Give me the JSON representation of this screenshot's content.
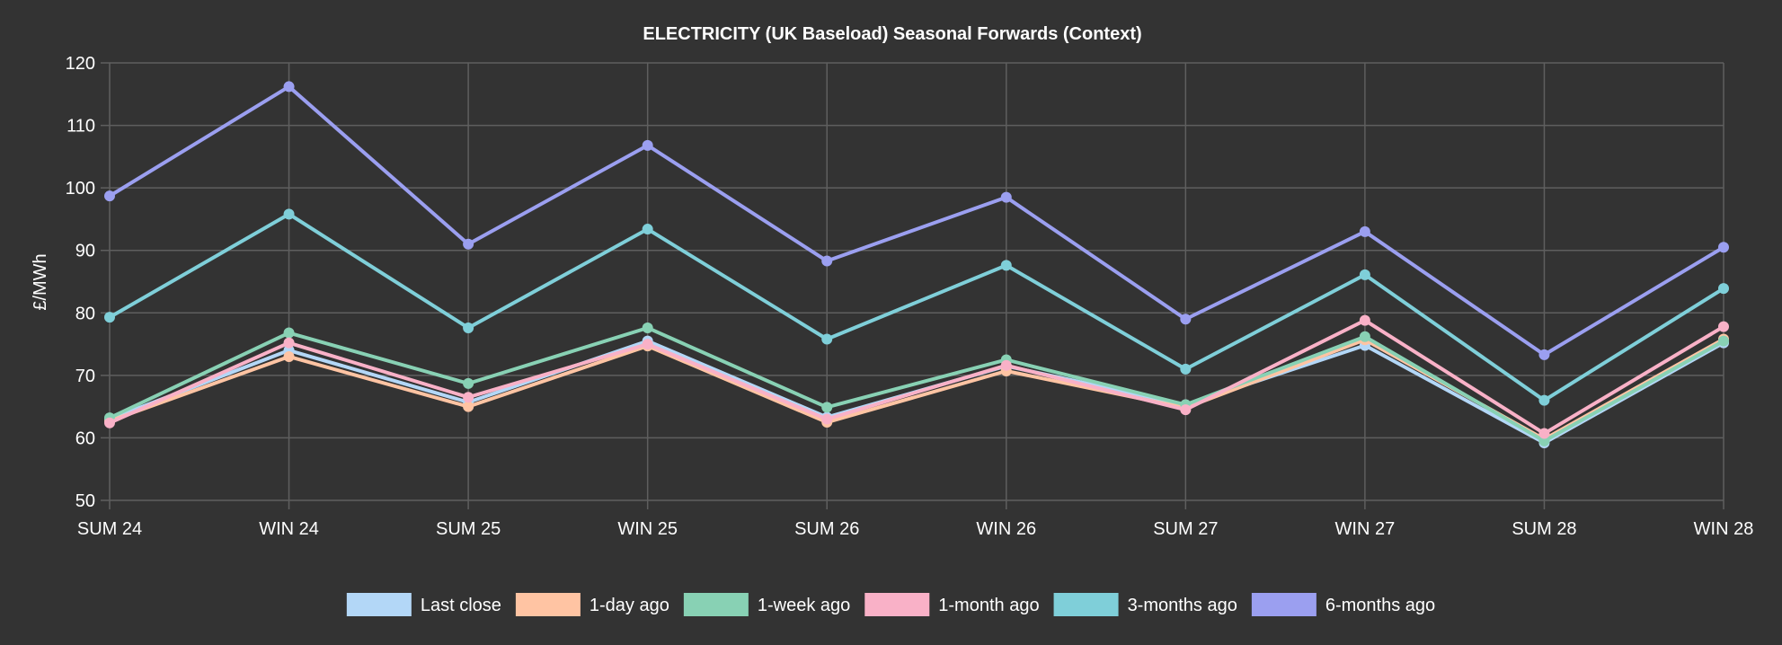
{
  "chart_data": {
    "type": "line",
    "title": "ELECTRICITY (UK Baseload) Seasonal Forwards (Context)",
    "xlabel": "",
    "ylabel": "£/MWh",
    "ylim": [
      50,
      120
    ],
    "yticks": [
      50,
      60,
      70,
      80,
      90,
      100,
      110,
      120
    ],
    "grid": true,
    "legend_position": "bottom",
    "categories": [
      "SUM 24",
      "WIN 24",
      "SUM 25",
      "WIN 25",
      "SUM 26",
      "WIN 26",
      "SUM 27",
      "WIN 27",
      "SUM 28",
      "WIN 28"
    ],
    "series": [
      {
        "name": "Last close",
        "color": "#b3d7f7",
        "values": [
          63.0,
          74.0,
          65.7,
          75.5,
          63.3,
          71.5,
          65.3,
          74.8,
          59.2,
          75.2
        ]
      },
      {
        "name": "1-day ago",
        "color": "#ffc4a3",
        "values": [
          62.7,
          73.0,
          65.0,
          74.7,
          62.5,
          70.7,
          64.8,
          75.7,
          59.8,
          75.8
        ]
      },
      {
        "name": "1-week ago",
        "color": "#88d1b4",
        "values": [
          63.2,
          76.8,
          68.7,
          77.6,
          64.9,
          72.5,
          65.3,
          76.2,
          59.5,
          75.5
        ]
      },
      {
        "name": "1-month ago",
        "color": "#f9b1c7",
        "values": [
          62.4,
          75.2,
          66.5,
          75.0,
          63.0,
          71.6,
          64.5,
          78.8,
          60.7,
          77.8
        ]
      },
      {
        "name": "3-months ago",
        "color": "#7fcfd9",
        "values": [
          79.3,
          95.8,
          77.6,
          93.4,
          75.8,
          87.6,
          71.0,
          86.1,
          66.0,
          83.9
        ]
      },
      {
        "name": "6-months ago",
        "color": "#9b9ff0",
        "values": [
          98.7,
          116.2,
          91.0,
          106.8,
          88.3,
          98.5,
          79.0,
          93.0,
          73.3,
          90.5
        ]
      }
    ]
  }
}
